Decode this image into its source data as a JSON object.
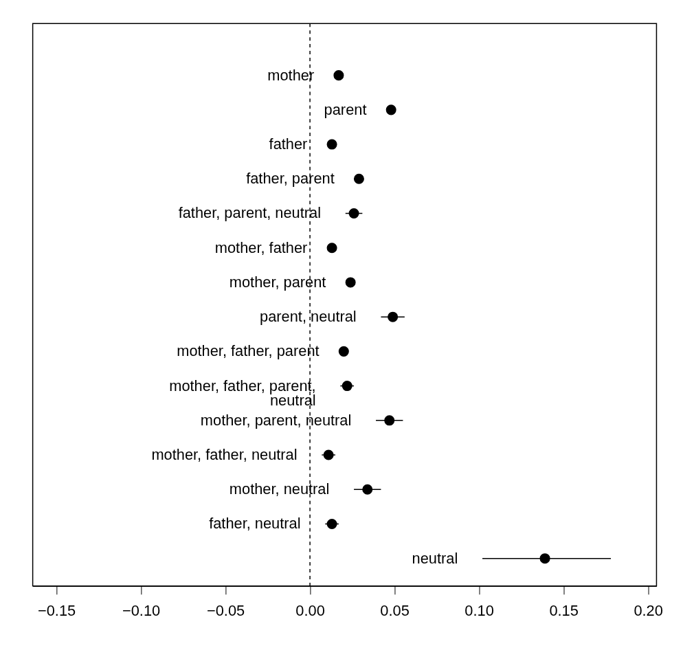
{
  "chart_data": {
    "type": "scatter",
    "orientation": "horizontal",
    "categories": [
      "mother",
      "parent",
      "father",
      "father, parent",
      "father, parent, neutral",
      "mother, father",
      "mother, parent",
      "parent, neutral",
      "mother, father, parent",
      "mother, father, parent, neutral",
      "mother, parent, neutral",
      "mother, father, neutral",
      "mother, neutral",
      "father, neutral",
      "neutral"
    ],
    "values": [
      0.017,
      0.048,
      0.013,
      0.029,
      0.026,
      0.013,
      0.024,
      0.049,
      0.02,
      0.022,
      0.047,
      0.011,
      0.034,
      0.013,
      0.139
    ],
    "errors": [
      null,
      null,
      null,
      null,
      0.005,
      null,
      null,
      0.007,
      null,
      0.004,
      0.008,
      0.004,
      0.008,
      0.004,
      [
        0.102,
        0.178
      ]
    ],
    "color": "#000000",
    "marker": "circle",
    "xlim": [
      -0.164,
      0.205
    ],
    "xticks": [
      {
        "value": -0.15,
        "label": "−0.15"
      },
      {
        "value": -0.1,
        "label": "−0.10"
      },
      {
        "value": -0.05,
        "label": "−0.05"
      },
      {
        "value": 0,
        "label": "0.00"
      },
      {
        "value": 0.05,
        "label": "0.05"
      },
      {
        "value": 0.1,
        "label": "0.10"
      },
      {
        "value": 0.15,
        "label": "0.15"
      },
      {
        "value": 0.2,
        "label": "0.20"
      }
    ],
    "ref_lines": [
      {
        "axis": "x",
        "value": 0,
        "line_style": "dashed",
        "color": "#000000"
      }
    ],
    "tick_labels": "x",
    "grid": false
  }
}
